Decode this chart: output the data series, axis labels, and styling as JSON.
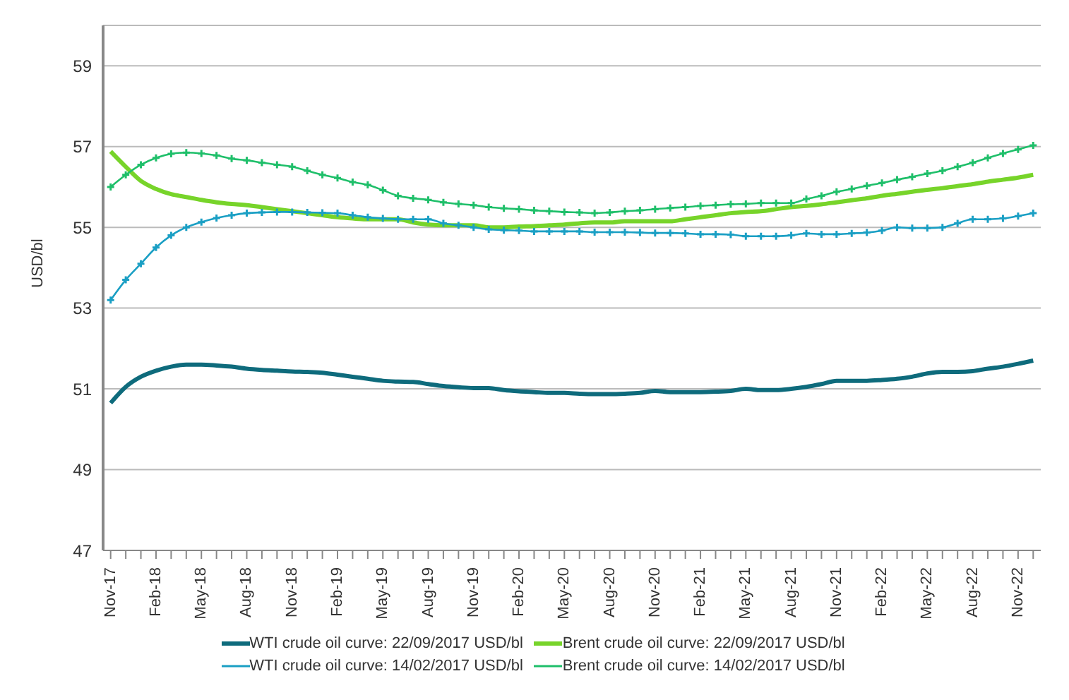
{
  "chart_data": {
    "type": "line",
    "ylabel": "USD/bl",
    "categories": [
      "Nov-17",
      null,
      null,
      "Feb-18",
      null,
      null,
      "May-18",
      null,
      null,
      "Aug-18",
      null,
      null,
      "Nov-18",
      null,
      null,
      "Feb-19",
      null,
      null,
      "May-19",
      null,
      null,
      "Aug-19",
      null,
      null,
      "Nov-19",
      null,
      null,
      "Feb-20",
      null,
      null,
      "May-20",
      null,
      null,
      "Aug-20",
      null,
      null,
      "Nov-20",
      null,
      null,
      "Feb-21",
      null,
      null,
      "May-21",
      null,
      null,
      "Aug-21",
      null,
      null,
      "Nov-21",
      null,
      null,
      "Feb-22",
      null,
      null,
      "May-22",
      null,
      null,
      "Aug-22",
      null,
      null,
      "Nov-22",
      null
    ],
    "series": [
      {
        "name": "WTI crude oil curve: 22/09/2017 USD/bl",
        "color": "#0e6b7c",
        "marker": "none",
        "values": [
          50.65,
          51.05,
          51.3,
          51.45,
          51.55,
          51.6,
          51.6,
          51.58,
          51.55,
          51.5,
          51.47,
          51.45,
          51.43,
          51.42,
          51.4,
          51.35,
          51.3,
          51.25,
          51.2,
          51.18,
          51.17,
          51.12,
          51.07,
          51.04,
          51.02,
          51.02,
          50.97,
          50.94,
          50.92,
          50.9,
          50.9,
          50.88,
          50.87,
          50.87,
          50.88,
          50.9,
          50.95,
          50.92,
          50.92,
          50.92,
          50.93,
          50.95,
          51.0,
          50.97,
          50.97,
          51.0,
          51.05,
          51.12,
          51.2,
          51.2,
          51.2,
          51.22,
          51.25,
          51.3,
          51.38,
          51.42,
          51.42,
          51.44,
          51.5,
          51.55,
          51.62,
          51.7
        ]
      },
      {
        "name": "Brent crude oil curve: 22/09/2017 USD/bl",
        "color": "#77d42a",
        "marker": "none",
        "values": [
          56.88,
          56.5,
          56.15,
          55.95,
          55.82,
          55.75,
          55.68,
          55.62,
          55.58,
          55.55,
          55.5,
          55.45,
          55.4,
          55.35,
          55.3,
          55.25,
          55.22,
          55.2,
          55.2,
          55.2,
          55.12,
          55.07,
          55.05,
          55.05,
          55.05,
          55.0,
          55.0,
          55.02,
          55.03,
          55.05,
          55.07,
          55.1,
          55.12,
          55.12,
          55.15,
          55.15,
          55.15,
          55.15,
          55.2,
          55.25,
          55.3,
          55.35,
          55.38,
          55.4,
          55.45,
          55.5,
          55.53,
          55.57,
          55.62,
          55.67,
          55.72,
          55.78,
          55.83,
          55.88,
          55.93,
          55.97,
          56.02,
          56.07,
          56.13,
          56.18,
          56.23,
          56.3
        ]
      },
      {
        "name": "WTI crude oil curve: 14/02/2017 USD/bl",
        "color": "#1a9fc4",
        "marker": "cross",
        "values": [
          53.2,
          53.7,
          54.1,
          54.5,
          54.8,
          55.0,
          55.13,
          55.23,
          55.3,
          55.35,
          55.37,
          55.38,
          55.38,
          55.37,
          55.36,
          55.35,
          55.3,
          55.25,
          55.22,
          55.2,
          55.2,
          55.2,
          55.1,
          55.05,
          55.0,
          54.95,
          54.93,
          54.92,
          54.9,
          54.9,
          54.9,
          54.9,
          54.88,
          54.88,
          54.88,
          54.87,
          54.86,
          54.86,
          54.85,
          54.83,
          54.83,
          54.82,
          54.78,
          54.78,
          54.78,
          54.8,
          54.85,
          54.83,
          54.83,
          54.85,
          54.87,
          54.92,
          55.0,
          54.98,
          54.98,
          55.0,
          55.1,
          55.2,
          55.2,
          55.22,
          55.28,
          55.35
        ]
      },
      {
        "name": "Brent crude oil curve: 14/02/2017 USD/bl",
        "color": "#1fbf6a",
        "marker": "cross",
        "values": [
          56.0,
          56.3,
          56.55,
          56.72,
          56.82,
          56.85,
          56.83,
          56.78,
          56.7,
          56.66,
          56.6,
          56.55,
          56.5,
          56.4,
          56.3,
          56.22,
          56.12,
          56.05,
          55.92,
          55.78,
          55.72,
          55.68,
          55.62,
          55.58,
          55.55,
          55.5,
          55.47,
          55.45,
          55.42,
          55.4,
          55.38,
          55.37,
          55.35,
          55.37,
          55.4,
          55.42,
          55.45,
          55.48,
          55.5,
          55.53,
          55.55,
          55.57,
          55.58,
          55.6,
          55.6,
          55.6,
          55.7,
          55.78,
          55.88,
          55.95,
          56.03,
          56.1,
          56.18,
          56.25,
          56.33,
          56.4,
          56.5,
          56.6,
          56.72,
          56.83,
          56.93,
          57.03
        ]
      }
    ],
    "ylim": [
      47,
      60
    ],
    "yticks": [
      47,
      49,
      51,
      53,
      55,
      57,
      59
    ],
    "grid": "y",
    "legend": "bottom",
    "line_style": "solid"
  }
}
